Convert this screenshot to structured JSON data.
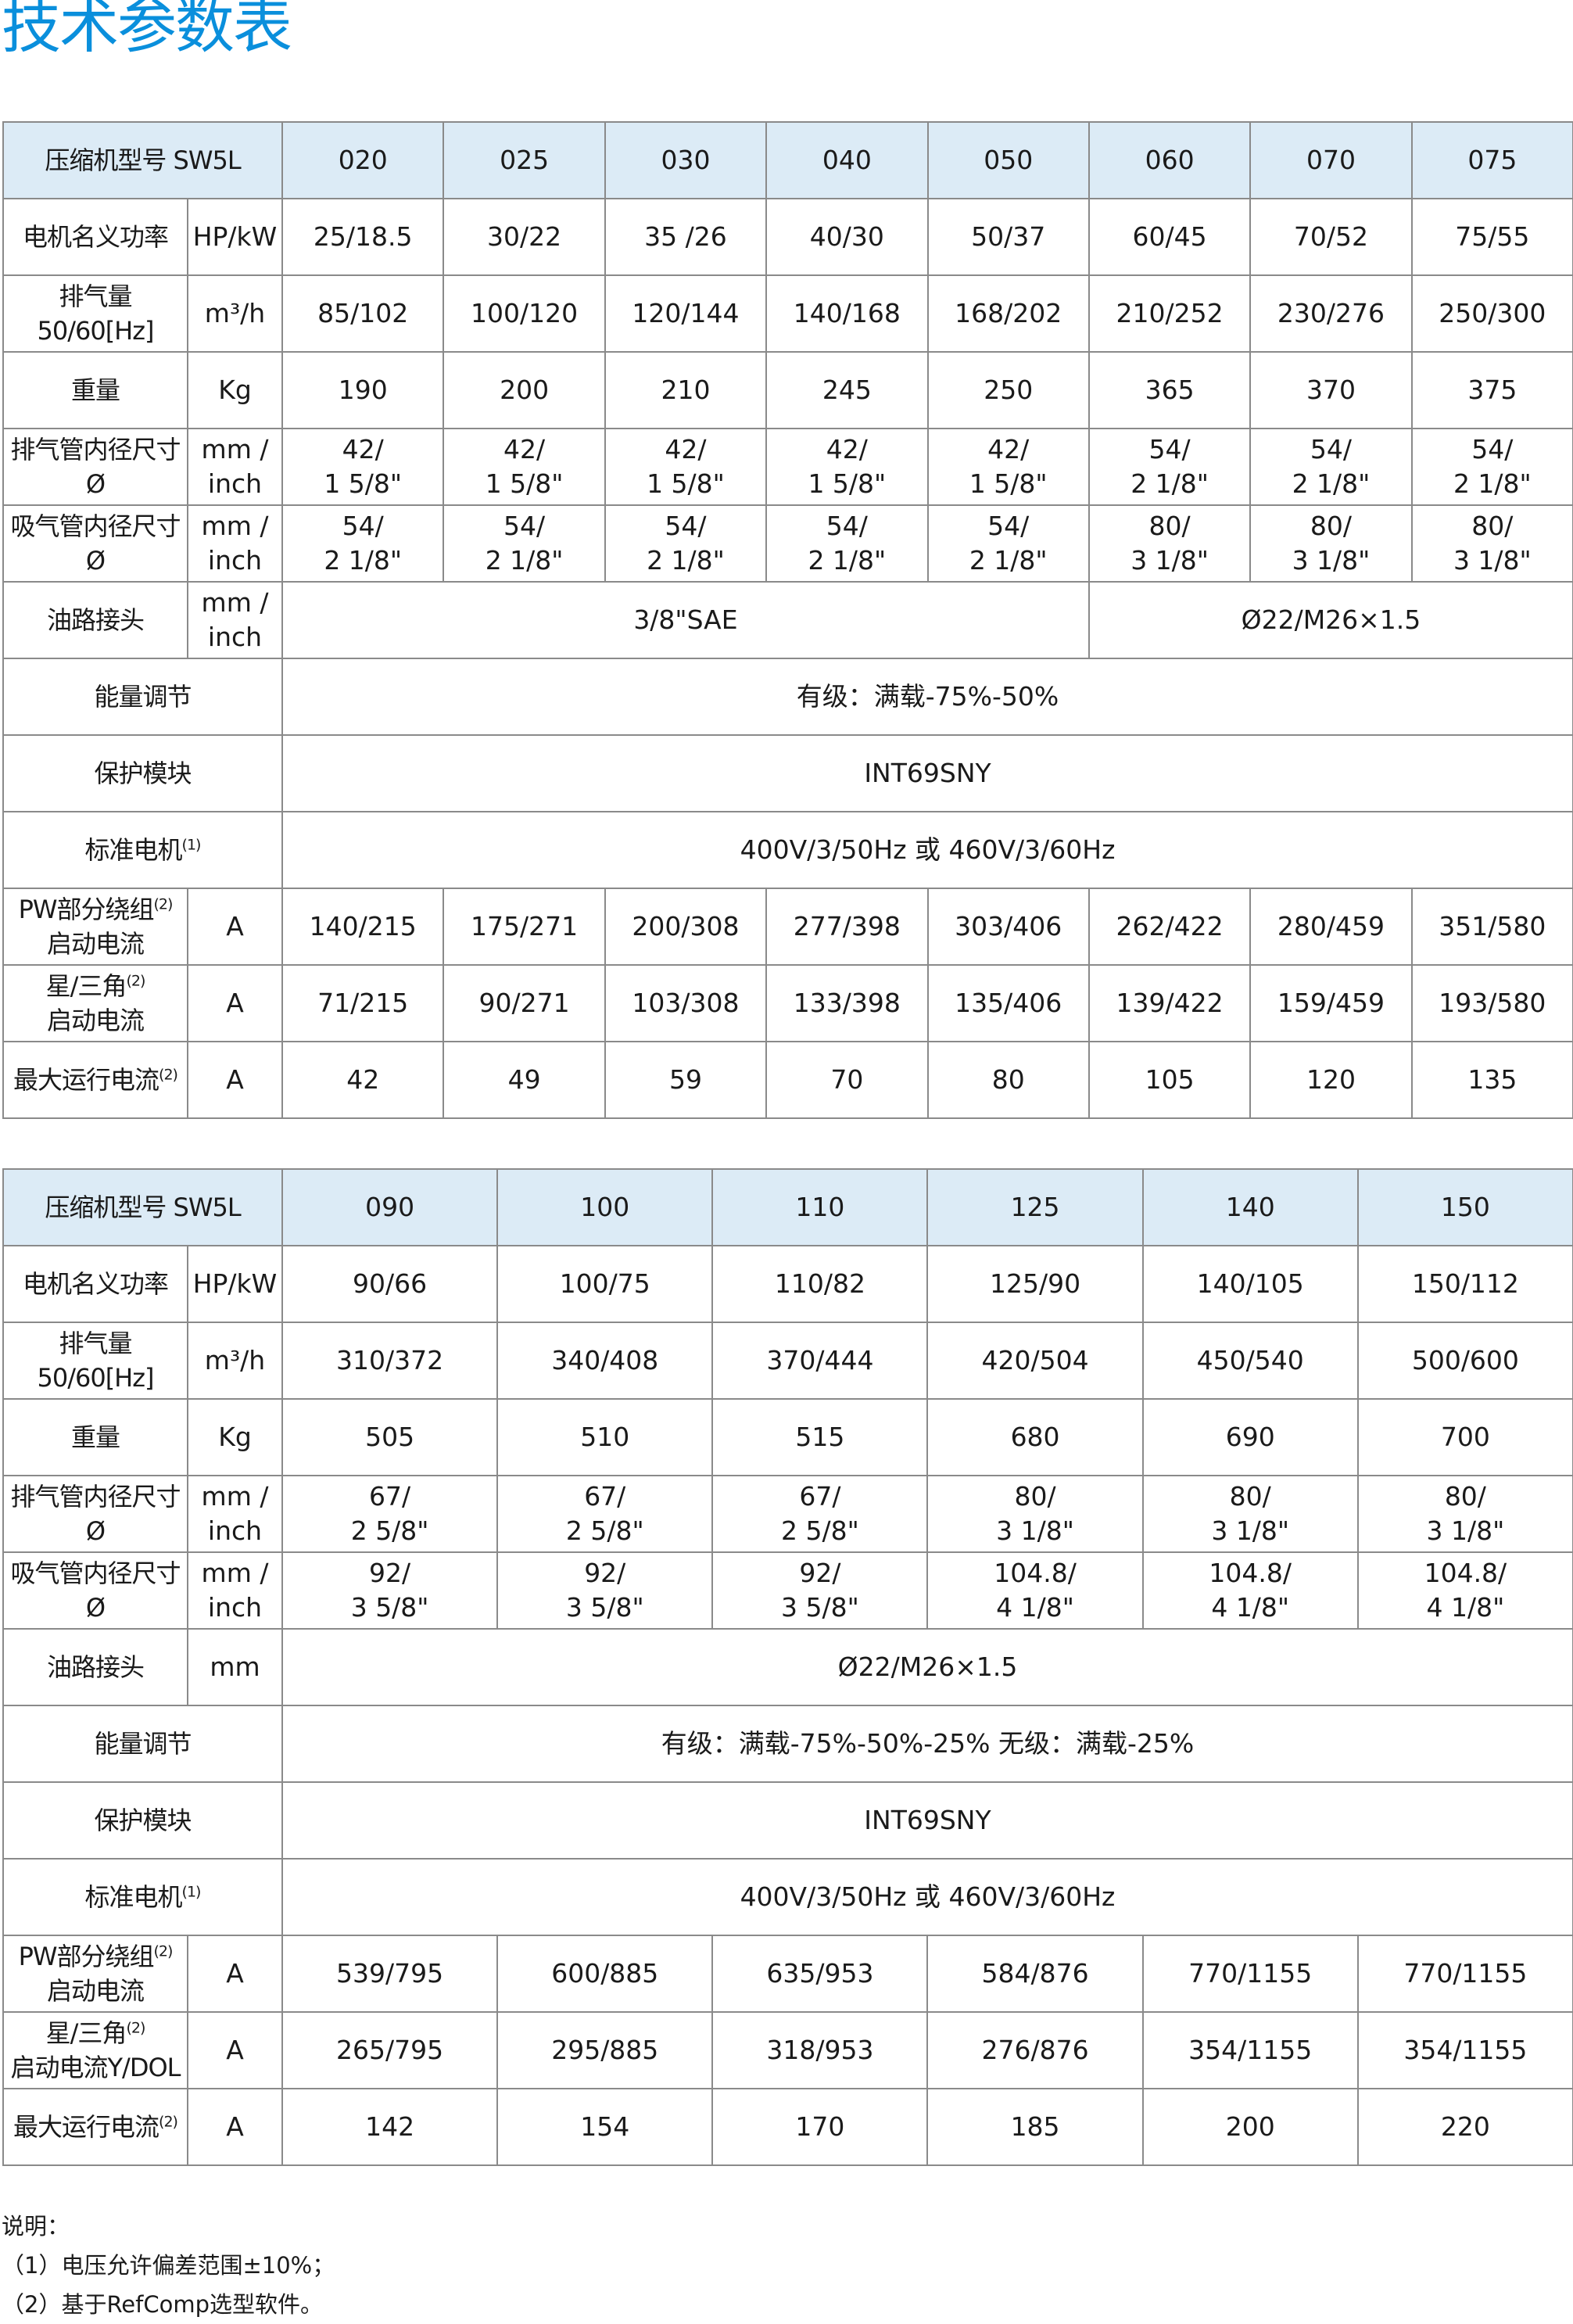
{
  "title": "技术参数表",
  "colors": {
    "title": "#0a8fdc",
    "header_bg": "#dcebf6",
    "border": "#8a8a8a"
  },
  "tables": [
    {
      "header_label": "压缩机型号 SW5L",
      "models": [
        "020",
        "025",
        "030",
        "040",
        "050",
        "060",
        "070",
        "075"
      ],
      "rows": [
        {
          "label": "电机名义功率",
          "unit": "HP/kW",
          "cells": [
            {
              "text": "25/18.5"
            },
            {
              "text": "30/22"
            },
            {
              "text": "35 /26"
            },
            {
              "text": "40/30"
            },
            {
              "text": "50/37"
            },
            {
              "text": "60/45"
            },
            {
              "text": "70/52"
            },
            {
              "text": "75/55"
            }
          ]
        },
        {
          "label": "排气量\n50/60[Hz]",
          "unit": "m³/h",
          "cells": [
            {
              "text": "85/102"
            },
            {
              "text": "100/120"
            },
            {
              "text": "120/144"
            },
            {
              "text": "140/168"
            },
            {
              "text": "168/202"
            },
            {
              "text": "210/252"
            },
            {
              "text": "230/276"
            },
            {
              "text": "250/300"
            }
          ]
        },
        {
          "label": "重量",
          "unit": "Kg",
          "cells": [
            {
              "text": "190"
            },
            {
              "text": "200"
            },
            {
              "text": "210"
            },
            {
              "text": "245"
            },
            {
              "text": "250"
            },
            {
              "text": "365"
            },
            {
              "text": "370"
            },
            {
              "text": "375"
            }
          ]
        },
        {
          "label": "排气管内径尺寸Ø",
          "unit": "mm /\ninch",
          "cells": [
            {
              "text": "42/\n1 5/8\""
            },
            {
              "text": "42/\n1 5/8\""
            },
            {
              "text": "42/\n1 5/8\""
            },
            {
              "text": "42/\n1 5/8\""
            },
            {
              "text": "42/\n1 5/8\""
            },
            {
              "text": "54/\n2 1/8\""
            },
            {
              "text": "54/\n2 1/8\""
            },
            {
              "text": "54/\n2 1/8\""
            }
          ]
        },
        {
          "label": "吸气管内径尺寸Ø",
          "unit": "mm /\ninch",
          "cells": [
            {
              "text": "54/\n2 1/8\""
            },
            {
              "text": "54/\n2 1/8\""
            },
            {
              "text": "54/\n2 1/8\""
            },
            {
              "text": "54/\n2 1/8\""
            },
            {
              "text": "54/\n2 1/8\""
            },
            {
              "text": "80/\n3 1/8\""
            },
            {
              "text": "80/\n3 1/8\""
            },
            {
              "text": "80/\n3 1/8\""
            }
          ]
        },
        {
          "label": "油路接头",
          "unit": "mm /\ninch",
          "cells": [
            {
              "text": "3/8\"SAE",
              "span": 5
            },
            {
              "text": "Ø22/M26×1.5",
              "span": 3
            }
          ]
        },
        {
          "label": "能量调节",
          "cells": [
            {
              "text": "有级：满载-75%-50%",
              "span": 8
            }
          ]
        },
        {
          "label": "保护模块",
          "cells": [
            {
              "text": "INT69SNY",
              "span": 8
            }
          ]
        },
        {
          "label": "标准电机",
          "sup": "(1)",
          "cells": [
            {
              "text": "400V/3/50Hz 或 460V/3/60Hz",
              "span": 8
            }
          ]
        },
        {
          "label": "PW部分绕组",
          "sup": "(2)",
          "label2": "启动电流",
          "unit": "A",
          "cells": [
            {
              "text": "140/215"
            },
            {
              "text": "175/271"
            },
            {
              "text": "200/308"
            },
            {
              "text": "277/398"
            },
            {
              "text": "303/406"
            },
            {
              "text": "262/422"
            },
            {
              "text": "280/459"
            },
            {
              "text": "351/580"
            }
          ]
        },
        {
          "label": "星/三角",
          "sup": "(2)",
          "label2": "启动电流",
          "unit": "A",
          "cells": [
            {
              "text": "71/215"
            },
            {
              "text": "90/271"
            },
            {
              "text": "103/308"
            },
            {
              "text": "133/398"
            },
            {
              "text": "135/406"
            },
            {
              "text": "139/422"
            },
            {
              "text": "159/459"
            },
            {
              "text": "193/580"
            }
          ]
        },
        {
          "label": "最大运行电流",
          "sup": "(2)",
          "unit": "A",
          "cells": [
            {
              "text": "42"
            },
            {
              "text": "49"
            },
            {
              "text": "59"
            },
            {
              "text": "70"
            },
            {
              "text": "80"
            },
            {
              "text": "105"
            },
            {
              "text": "120"
            },
            {
              "text": "135"
            }
          ]
        }
      ]
    },
    {
      "header_label": "压缩机型号 SW5L",
      "models": [
        "090",
        "100",
        "110",
        "125",
        "140",
        "150"
      ],
      "rows": [
        {
          "label": "电机名义功率",
          "unit": "HP/kW",
          "cells": [
            {
              "text": "90/66"
            },
            {
              "text": "100/75"
            },
            {
              "text": "110/82"
            },
            {
              "text": "125/90"
            },
            {
              "text": "140/105"
            },
            {
              "text": "150/112"
            }
          ]
        },
        {
          "label": "排气量\n50/60[Hz]",
          "unit": "m³/h",
          "cells": [
            {
              "text": "310/372"
            },
            {
              "text": "340/408"
            },
            {
              "text": "370/444"
            },
            {
              "text": "420/504"
            },
            {
              "text": "450/540"
            },
            {
              "text": "500/600"
            }
          ]
        },
        {
          "label": "重量",
          "unit": "Kg",
          "cells": [
            {
              "text": "505"
            },
            {
              "text": "510"
            },
            {
              "text": "515"
            },
            {
              "text": "680"
            },
            {
              "text": "690"
            },
            {
              "text": "700"
            }
          ]
        },
        {
          "label": "排气管内径尺寸Ø",
          "unit": "mm /\ninch",
          "cells": [
            {
              "text": "67/\n2 5/8\""
            },
            {
              "text": "67/\n2 5/8\""
            },
            {
              "text": "67/\n2 5/8\""
            },
            {
              "text": "80/\n3 1/8\""
            },
            {
              "text": "80/\n3 1/8\""
            },
            {
              "text": "80/\n3 1/8\""
            }
          ]
        },
        {
          "label": "吸气管内径尺寸Ø",
          "unit": "mm /\ninch",
          "cells": [
            {
              "text": "92/\n3 5/8\""
            },
            {
              "text": "92/\n3 5/8\""
            },
            {
              "text": "92/\n3 5/8\""
            },
            {
              "text": "104.8/\n4 1/8\""
            },
            {
              "text": "104.8/\n4 1/8\""
            },
            {
              "text": "104.8/\n4 1/8\""
            }
          ]
        },
        {
          "label": "油路接头",
          "unit": "mm",
          "cells": [
            {
              "text": "Ø22/M26×1.5",
              "span": 6
            }
          ]
        },
        {
          "label": "能量调节",
          "cells": [
            {
              "text": "有级：满载-75%-50%-25% 无级：满载-25%",
              "span": 6
            }
          ]
        },
        {
          "label": "保护模块",
          "cells": [
            {
              "text": "INT69SNY",
              "span": 6
            }
          ]
        },
        {
          "label": "标准电机",
          "sup": "(1)",
          "cells": [
            {
              "text": "400V/3/50Hz 或 460V/3/60Hz",
              "span": 6
            }
          ]
        },
        {
          "label": "PW部分绕组",
          "sup": "(2)",
          "label2": "启动电流",
          "unit": "A",
          "cells": [
            {
              "text": "539/795"
            },
            {
              "text": "600/885"
            },
            {
              "text": "635/953"
            },
            {
              "text": "584/876"
            },
            {
              "text": "770/1155"
            },
            {
              "text": "770/1155"
            }
          ]
        },
        {
          "label": "星/三角",
          "sup": "(2)",
          "label2": "启动电流Y/DOL",
          "unit": "A",
          "cells": [
            {
              "text": "265/795"
            },
            {
              "text": "295/885"
            },
            {
              "text": "318/953"
            },
            {
              "text": "276/876"
            },
            {
              "text": "354/1155"
            },
            {
              "text": "354/1155"
            }
          ]
        },
        {
          "label": "最大运行电流",
          "sup": "(2)",
          "unit": "A",
          "cells": [
            {
              "text": "142"
            },
            {
              "text": "154"
            },
            {
              "text": "170"
            },
            {
              "text": "185"
            },
            {
              "text": "200"
            },
            {
              "text": "220"
            }
          ]
        }
      ]
    }
  ],
  "notes": {
    "heading": "说明：",
    "items": [
      "（1）电压允许偏差范围±10%；",
      "（2）基于RefComp选型软件。"
    ]
  }
}
